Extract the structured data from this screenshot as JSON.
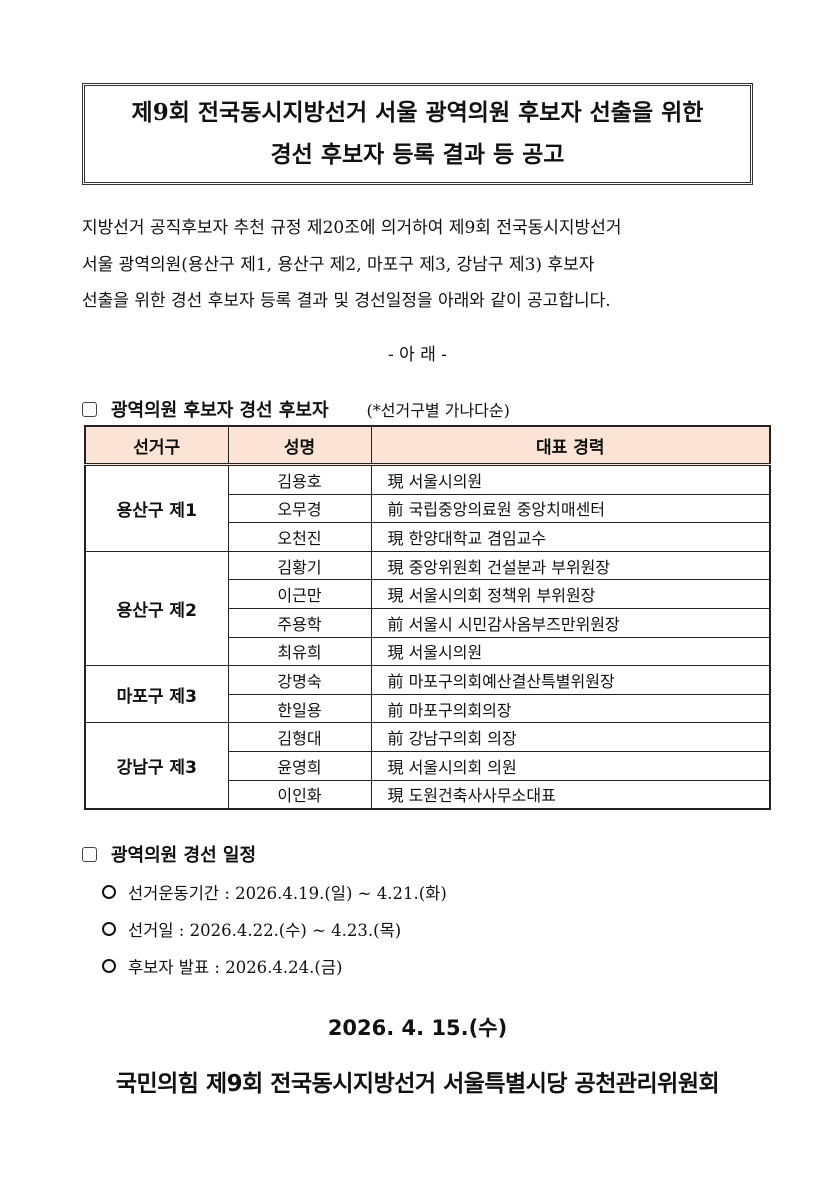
{
  "title": {
    "line1": "제9회 전국동시지방선거 서울 광역의원 후보자 선출을 위한",
    "line2": "경선 후보자 등록 결과 등 공고"
  },
  "body_lines": [
    "지방선거 공직후보자 추천 규정 제20조에 의거하여 제9회 전국동시지방선거",
    "서울 광역의원(용산구 제1, 용산구 제2, 마포구 제3, 강남구 제3) 후보자",
    "선출을 위한 경선 후보자 등록 결과 및 경선일정을 아래와 같이 공고합니다."
  ],
  "arae": "- 아  래 -",
  "section1": {
    "title": "광역의원 후보자 경선 후보자",
    "note": "(*선거구별 가나다순)"
  },
  "table": {
    "headers": [
      "선거구",
      "성명",
      "대표 경력"
    ],
    "header_bg": "#fbe4d5",
    "groups": [
      {
        "district": "용산구 제1",
        "candidates": [
          {
            "name": "김용호",
            "career": "現 서울시의원"
          },
          {
            "name": "오무경",
            "career": "前 국립중앙의료원 중앙치매센터"
          },
          {
            "name": "오천진",
            "career": "現 한양대학교 겸임교수"
          }
        ]
      },
      {
        "district": "용산구 제2",
        "candidates": [
          {
            "name": "김황기",
            "career": "現 중앙위원회 건설분과 부위원장"
          },
          {
            "name": "이근만",
            "career": "現 서울시의회 정책위 부위원장"
          },
          {
            "name": "주용학",
            "career": "前 서울시 시민감사옴부즈만위원장"
          },
          {
            "name": "최유희",
            "career": "現 서울시의원"
          }
        ]
      },
      {
        "district": "마포구 제3",
        "candidates": [
          {
            "name": "강명숙",
            "career": "前 마포구의회예산결산특별위원장"
          },
          {
            "name": "한일용",
            "career": "前 마포구의회의장"
          }
        ]
      },
      {
        "district": "강남구 제3",
        "candidates": [
          {
            "name": "김형대",
            "career": "前 강남구의회 의장"
          },
          {
            "name": "윤영희",
            "career": "現 서울시의회 의원"
          },
          {
            "name": "이인화",
            "career": "現 도원건축사사무소대표"
          }
        ]
      }
    ]
  },
  "section2": {
    "title": "광역의원 경선 일정"
  },
  "schedule": [
    "선거운동기간 : 2026.4.19.(일) ~ 4.21.(화)",
    "선거일 : 2026.4.22.(수) ~ 4.23.(목)",
    "후보자 발표 : 2026.4.24.(금)"
  ],
  "date": "2026. 4. 15.(수)",
  "organization": "국민의힘 제9회 전국동시지방선거 서울특별시당 공천관리위원회"
}
